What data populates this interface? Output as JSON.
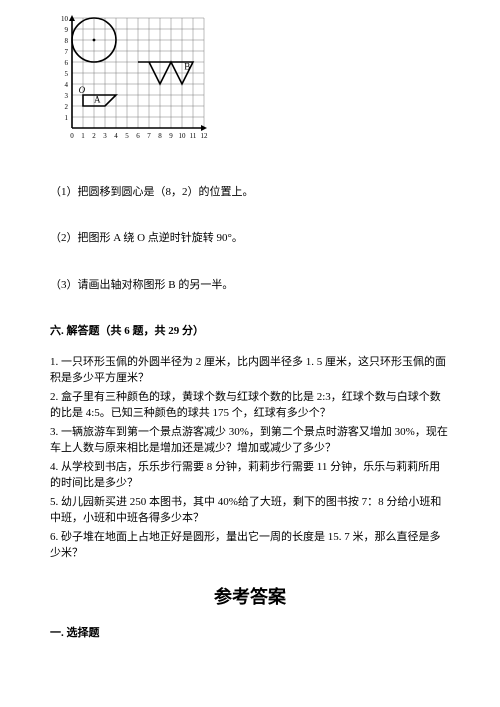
{
  "figure": {
    "grid": {
      "cols": 12,
      "rows": 10,
      "cell": 11,
      "ox": 22,
      "oy": 4,
      "stroke": "#7a7a7a"
    },
    "axes": {
      "x_labels": [
        "0",
        "1",
        "2",
        "3",
        "4",
        "5",
        "6",
        "7",
        "8",
        "9",
        "10",
        "11",
        "12"
      ],
      "y_labels": [
        "1",
        "2",
        "3",
        "4",
        "5",
        "6",
        "7",
        "8",
        "9",
        "10"
      ]
    },
    "origin_label": "O",
    "circle": {
      "cx_u": 2,
      "cy_u": 8,
      "r_u": 2
    },
    "shapeA": {
      "label": "A",
      "pts_u": [
        [
          1,
          3
        ],
        [
          4,
          3
        ],
        [
          3,
          2
        ],
        [
          1,
          2
        ]
      ]
    },
    "shapeB": {
      "label": "B",
      "pts_u": [
        [
          6,
          6
        ],
        [
          11,
          6
        ],
        [
          10,
          4
        ],
        [
          9,
          6
        ],
        [
          8,
          4
        ],
        [
          7,
          6
        ]
      ]
    }
  },
  "q1": "（1）把圆移到圆心是（8，2）的位置上。",
  "q2": "（2）把图形 A 绕 O 点逆时针旋转 90°。",
  "q3": "（3）请画出轴对称图形 B 的另一半。",
  "section6_title": "六. 解答题（共 6 题，共 29 分）",
  "p1": "1. 一只环形玉佩的外圆半径为 2 厘米，比内圆半径多 1. 5 厘米，这只环形玉佩的面积是多少平方厘米？",
  "p2": "2. 盒子里有三种颜色的球，黄球个数与红球个数的比是 2:3，红球个数与白球个数的比是 4:5。已知三种颜色的球共 175 个，红球有多少个？",
  "p3": "3. 一辆旅游车到第一个景点游客减少 30%，到第二个景点时游客又增加 30%，现在车上人数与原来相比是增加还是减少？增加或减少了多少？",
  "p4": "4. 从学校到书店，乐乐步行需要 8 分钟，莉莉步行需要 11 分钟，乐乐与莉莉所用的时间比是多少？",
  "p5": "5. 幼儿园新买进 250 本图书，其中 40%给了大班，剩下的图书按 7：8 分给小班和中班，小班和中班各得多少本？",
  "p6": "6. 砂子堆在地面上占地正好是圆形，量出它一周的长度是 15. 7 米，那么直径是多少米？",
  "answers_title": "参考答案",
  "sec1_title": "一. 选择题"
}
